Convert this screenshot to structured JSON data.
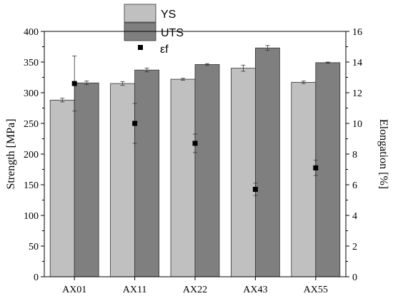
{
  "chart_data": {
    "type": "bar",
    "categories": [
      "AX01",
      "AX11",
      "AX22",
      "AX43",
      "AX55"
    ],
    "ylabel": "Strength [MPa]",
    "y2label": "Elongation [%]",
    "ylim": [
      0,
      400
    ],
    "y2lim": [
      0,
      16
    ],
    "yticks": [
      "0",
      "50",
      "100",
      "150",
      "200",
      "250",
      "300",
      "350",
      "400"
    ],
    "y2ticks": [
      "0",
      "2",
      "4",
      "6",
      "8",
      "10",
      "12",
      "14",
      "16"
    ],
    "series": [
      {
        "name": "YS",
        "axis": "left",
        "kind": "bar",
        "color": "#c0c0c0",
        "values": [
          288,
          315,
          322,
          340,
          317
        ],
        "errors": [
          3,
          3,
          1.5,
          5,
          2
        ]
      },
      {
        "name": "UTS",
        "axis": "left",
        "kind": "bar",
        "color": "#7f7f7f",
        "values": [
          316,
          337,
          346,
          373,
          349
        ],
        "errors": [
          3,
          3,
          1.5,
          4,
          1
        ]
      },
      {
        "name": "εf",
        "axis": "right",
        "kind": "point",
        "color": "#000000",
        "values": [
          12.6,
          10.0,
          8.7,
          5.7,
          7.1
        ],
        "errors": [
          1.8,
          1.3,
          0.6,
          0.4,
          0.5
        ]
      }
    ],
    "legend": "top-center",
    "grid": false
  }
}
